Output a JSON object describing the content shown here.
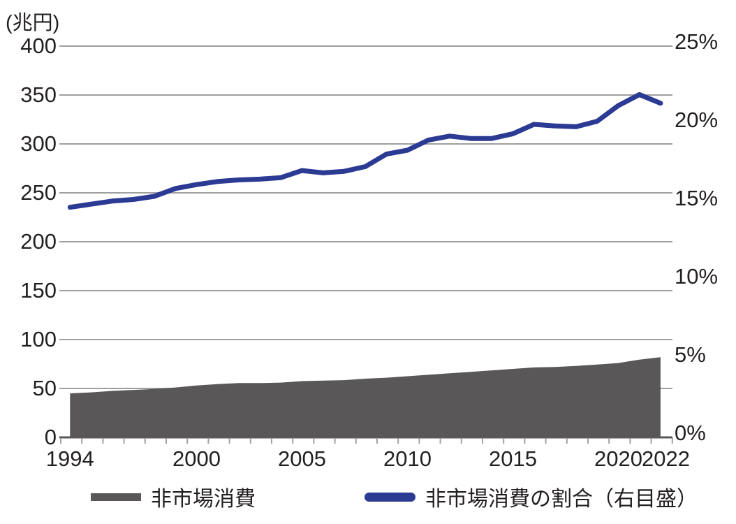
{
  "chart_data": {
    "type": "combo-area-line",
    "title": "",
    "x_years": [
      1994,
      1995,
      1996,
      1997,
      1998,
      1999,
      2000,
      2001,
      2002,
      2003,
      2004,
      2005,
      2006,
      2007,
      2008,
      2009,
      2010,
      2011,
      2012,
      2013,
      2014,
      2015,
      2016,
      2017,
      2018,
      2019,
      2020,
      2021,
      2022
    ],
    "x_tick_label_years": [
      1994,
      2000,
      2005,
      2010,
      2015,
      2020,
      2022
    ],
    "x_tick_labels": [
      "1994",
      "2000",
      "2005",
      "2010",
      "2015",
      "2020",
      "2022"
    ],
    "y_left": {
      "unit_label": "(兆円)",
      "min": 0,
      "max": 400,
      "step": 50,
      "tick_labels": [
        "0",
        "50",
        "100",
        "150",
        "200",
        "250",
        "300",
        "350",
        "400"
      ]
    },
    "y_right": {
      "min": 0,
      "max": 25,
      "step": 5,
      "tick_labels": [
        "0%",
        "5%",
        "10%",
        "15%",
        "20%",
        "25%"
      ]
    },
    "series": [
      {
        "name": "非市場消費",
        "type": "area",
        "axis": "left",
        "color": "#595757",
        "values": [
          45,
          46,
          47.5,
          48.5,
          49.5,
          51,
          53,
          54.5,
          55.5,
          55.5,
          56,
          57.5,
          58,
          58.5,
          60,
          61,
          62.5,
          64,
          65.5,
          67,
          68.5,
          70,
          71.5,
          72,
          73,
          74.5,
          76,
          79.5,
          82
        ]
      },
      {
        "name": "非市場消費の割合（右目盛）",
        "type": "line",
        "axis": "right",
        "color": "#2b3a92",
        "values": [
          14.7,
          14.9,
          15.1,
          15.2,
          15.4,
          15.9,
          16.15,
          16.35,
          16.45,
          16.5,
          16.6,
          17.05,
          16.9,
          17.0,
          17.3,
          18.1,
          18.35,
          19.0,
          19.25,
          19.1,
          19.1,
          19.4,
          20.0,
          19.9,
          19.85,
          20.2,
          21.2,
          21.9,
          21.35
        ]
      }
    ],
    "grid": {
      "show": true,
      "color": "#9f9fa0",
      "axis_color": "#595757",
      "text_color": "#231f20"
    },
    "legend_position": "bottom"
  }
}
